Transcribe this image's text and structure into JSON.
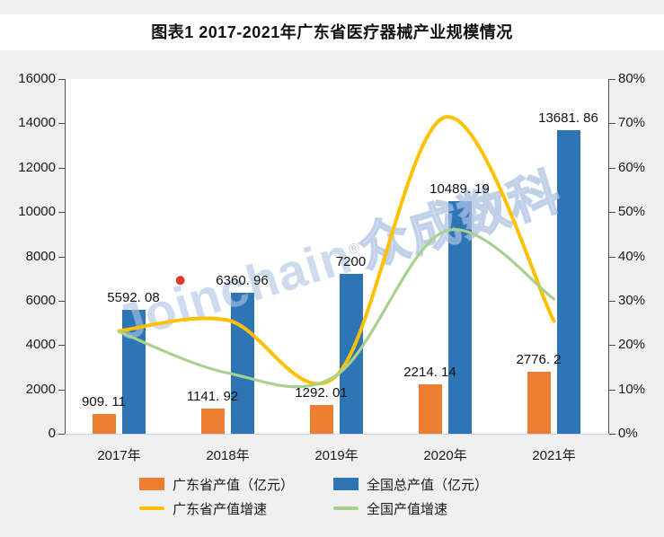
{
  "title": "图表1 2017-2021年广东省医疗器械产业规模情况",
  "watermark": {
    "brand": "Joinchain",
    "reg": "®",
    "suffix": "众成数科"
  },
  "colors": {
    "orange": "#ED7D31",
    "blue": "#2E75B6",
    "yellow": "#FFC000",
    "green": "#A9D18E",
    "page_bg": "#F0F0F0",
    "plot_bg": "#FFFFFF",
    "axis": "#4D4D4D",
    "baseline": "#CBD3E0",
    "watermark_blue": "#ADC3E2",
    "watermark_dot": "#E0392E"
  },
  "chart_data": {
    "type": "bar",
    "subtype": "bar-line-combo",
    "title": "图表1 2017-2021年广东省医疗器械产业规模情况",
    "categories": [
      "2017年",
      "2018年",
      "2019年",
      "2020年",
      "2021年"
    ],
    "series": [
      {
        "name": "广东省产值（亿元）",
        "type": "bar",
        "axis": "left",
        "color_key": "orange",
        "values": [
          909.11,
          1141.92,
          1292.01,
          2214.14,
          2776.2
        ],
        "labels": [
          "909. 11",
          "1141. 92",
          "1292. 01",
          "2214. 14",
          "2776. 2"
        ]
      },
      {
        "name": "全国总产值（亿元）",
        "type": "bar",
        "axis": "left",
        "color_key": "blue",
        "values": [
          5592.08,
          6360.96,
          7200,
          10489.19,
          13681.86
        ],
        "labels": [
          "5592. 08",
          "6360. 96",
          "7200",
          "10489. 19",
          "13681. 86"
        ]
      },
      {
        "name": "广东省产值增速",
        "type": "line",
        "axis": "right",
        "color_key": "yellow",
        "values": [
          23.2,
          25.6,
          13.1,
          71.4,
          25.4
        ]
      },
      {
        "name": "全国产值增速",
        "type": "line",
        "axis": "right",
        "color_key": "green",
        "values": [
          23.0,
          13.7,
          13.2,
          45.7,
          30.4
        ]
      }
    ],
    "left_axis": {
      "min": 0,
      "max": 16000,
      "step": 2000,
      "ticks": [
        "0",
        "2000",
        "4000",
        "6000",
        "8000",
        "10000",
        "12000",
        "14000",
        "16000"
      ]
    },
    "right_axis": {
      "min": 0,
      "max": 80,
      "step": 10,
      "ticks": [
        "0%",
        "10%",
        "20%",
        "30%",
        "40%",
        "50%",
        "60%",
        "70%",
        "80%"
      ]
    },
    "grid": false,
    "legend_position": "bottom",
    "xlabel": "",
    "ylabel": ""
  }
}
